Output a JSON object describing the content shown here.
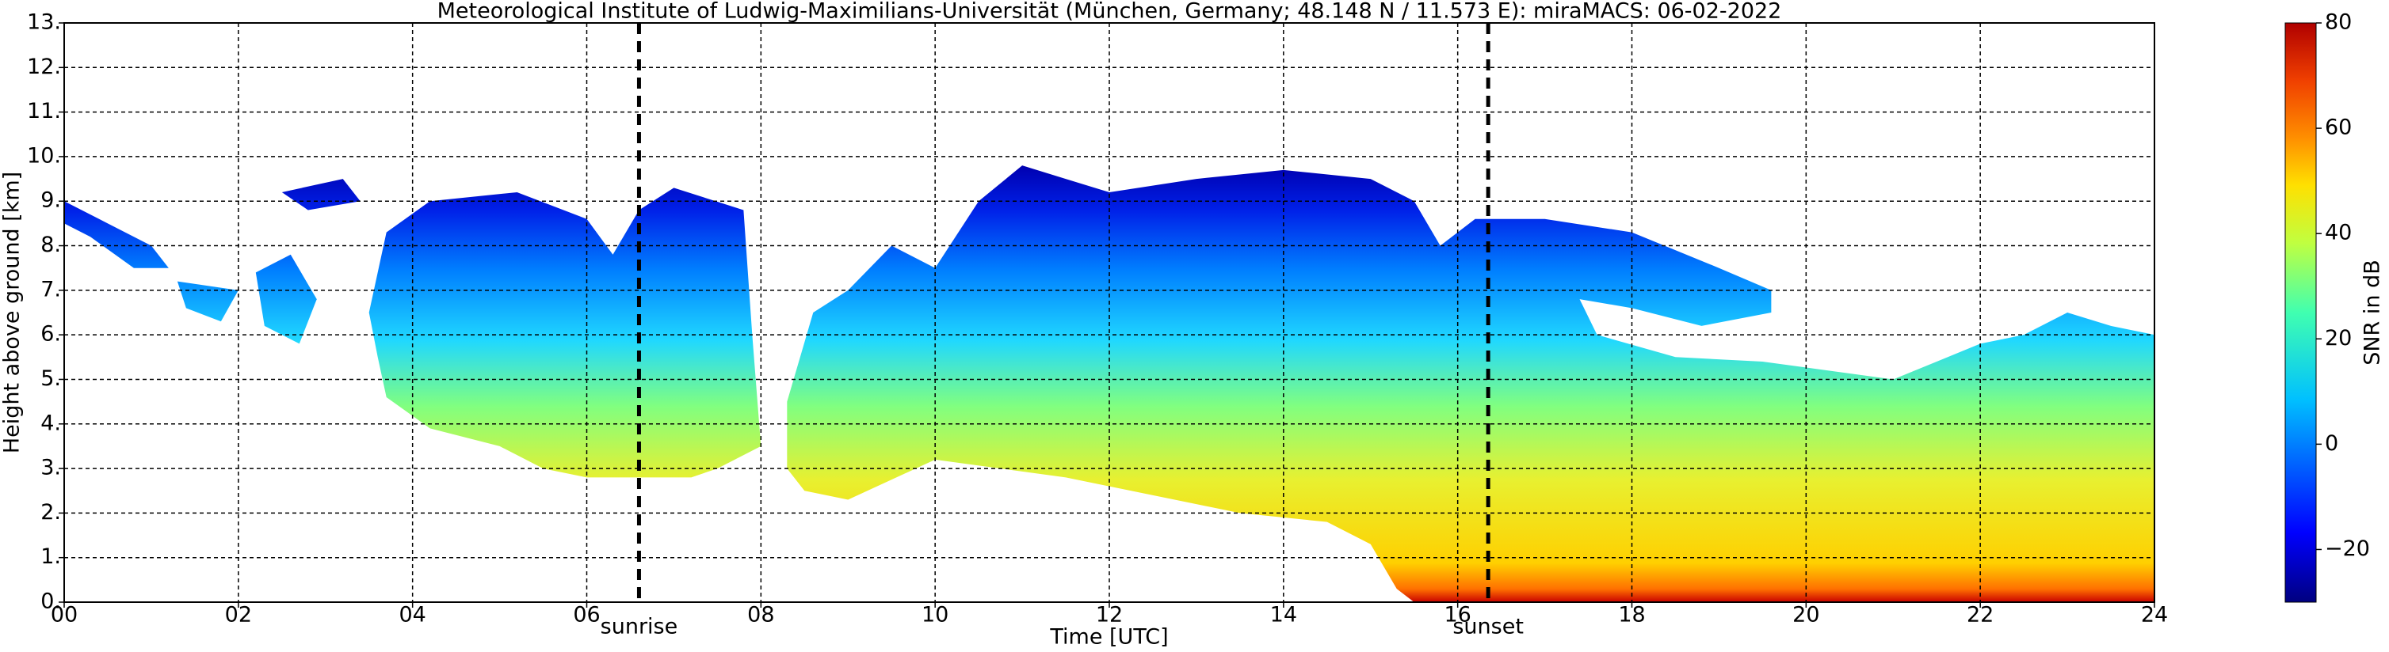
{
  "chart_data": {
    "type": "heatmap",
    "title": "Meteorological Institute of Ludwig-Maximilians-Universität (München, Germany; 48.148 N / 11.573 E):    miraMACS: 06-02-2022",
    "xlabel": "Time [UTC]",
    "ylabel": "Height above ground [km]",
    "xlim": [
      0,
      24
    ],
    "xticks": [
      {
        "value": 0,
        "label": "00"
      },
      {
        "value": 2,
        "label": "02"
      },
      {
        "value": 4,
        "label": "04"
      },
      {
        "value": 6,
        "label": "06"
      },
      {
        "value": 8,
        "label": "08"
      },
      10,
      12,
      14,
      16,
      18,
      20,
      22,
      24
    ],
    "ylim": [
      0,
      13
    ],
    "yticks": [
      {
        "value": 0,
        "label": "0."
      },
      {
        "value": 1,
        "label": "1."
      },
      {
        "value": 2,
        "label": "2."
      },
      {
        "value": 3,
        "label": "3."
      },
      {
        "value": 4,
        "label": "4."
      },
      {
        "value": 5,
        "label": "5."
      },
      {
        "value": 6,
        "label": "6."
      },
      {
        "value": 7,
        "label": "7."
      },
      {
        "value": 8,
        "label": "8."
      },
      {
        "value": 9,
        "label": "9."
      },
      {
        "value": 10,
        "label": "10."
      },
      {
        "value": 11,
        "label": "11."
      },
      {
        "value": 12,
        "label": "12."
      },
      {
        "value": 13,
        "label": "13."
      }
    ],
    "grid": true,
    "colorbar": {
      "label": "SNR in dB",
      "lim": [
        -30,
        80
      ],
      "ticks": [
        {
          "value": -20,
          "label": "−20"
        },
        0,
        20,
        40,
        60,
        80
      ]
    },
    "annotations": [
      {
        "label": "sunrise",
        "x": 6.6
      },
      {
        "label": "sunset",
        "x": 16.35
      }
    ]
  }
}
